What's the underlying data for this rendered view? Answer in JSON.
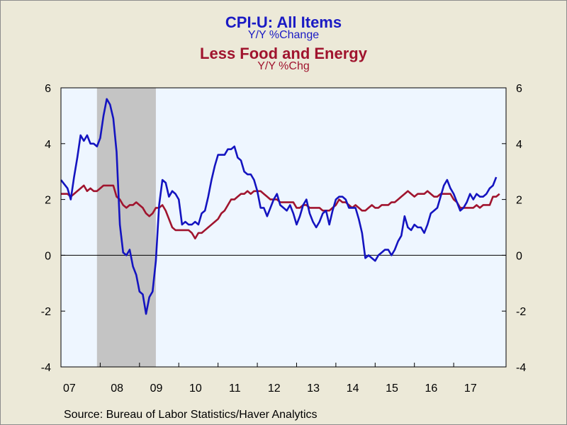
{
  "titles": {
    "line1": "CPI-U: All Items",
    "line2": "Y/Y %Change",
    "line3": "Less Food and Energy",
    "line4": "Y/Y %Chg"
  },
  "source": "Source:  Bureau of Labor Statistics/Haver Analytics",
  "colors": {
    "series_all_items": "#1414c0",
    "series_core": "#a0142e",
    "plot_background": "#eef6ff",
    "recession_shade": "#c4c4c4"
  },
  "chart_data": {
    "type": "line",
    "title": "CPI-U: All Items Y/Y %Change; Less Food and Energy Y/Y %Chg",
    "x_ticks": [
      "07",
      "08",
      "09",
      "10",
      "11",
      "12",
      "13",
      "14",
      "15",
      "16",
      "17"
    ],
    "xlim": [
      "2007-01",
      "2018-05"
    ],
    "ylim": [
      -4,
      6
    ],
    "y_ticks_left": [
      "6",
      "4",
      "2",
      "0",
      "-2",
      "-4"
    ],
    "y_ticks_right": [
      "6",
      "4",
      "2",
      "0",
      "-2",
      "-4"
    ],
    "zero_line": true,
    "recession_shading": [
      [
        "2007-12",
        "2009-06"
      ]
    ],
    "series": [
      {
        "key": "all_items",
        "points": [
          [
            "2007-01",
            2.7
          ],
          [
            "2007-03",
            2.4
          ],
          [
            "2007-04",
            2.0
          ],
          [
            "2007-05",
            2.8
          ],
          [
            "2007-06",
            3.5
          ],
          [
            "2007-07",
            4.3
          ],
          [
            "2007-08",
            4.1
          ],
          [
            "2007-09",
            4.3
          ],
          [
            "2007-10",
            4.0
          ],
          [
            "2007-11",
            4.0
          ],
          [
            "2007-12",
            3.9
          ],
          [
            "2008-01",
            4.2
          ],
          [
            "2008-02",
            5.0
          ],
          [
            "2008-03",
            5.6
          ],
          [
            "2008-04",
            5.4
          ],
          [
            "2008-05",
            4.9
          ],
          [
            "2008-06",
            3.7
          ],
          [
            "2008-07",
            1.1
          ],
          [
            "2008-08",
            0.1
          ],
          [
            "2008-09",
            0.0
          ],
          [
            "2008-10",
            0.2
          ],
          [
            "2008-11",
            -0.4
          ],
          [
            "2008-12",
            -0.7
          ],
          [
            "2009-01",
            -1.3
          ],
          [
            "2009-02",
            -1.4
          ],
          [
            "2009-03",
            -2.1
          ],
          [
            "2009-04",
            -1.5
          ],
          [
            "2009-05",
            -1.3
          ],
          [
            "2009-06",
            -0.2
          ],
          [
            "2009-07",
            1.8
          ],
          [
            "2009-08",
            2.7
          ],
          [
            "2009-09",
            2.6
          ],
          [
            "2009-10",
            2.1
          ],
          [
            "2009-11",
            2.3
          ],
          [
            "2009-12",
            2.2
          ],
          [
            "2010-01",
            2.0
          ],
          [
            "2010-02",
            1.1
          ],
          [
            "2010-03",
            1.2
          ],
          [
            "2010-04",
            1.1
          ],
          [
            "2010-05",
            1.1
          ],
          [
            "2010-06",
            1.2
          ],
          [
            "2010-07",
            1.1
          ],
          [
            "2010-08",
            1.5
          ],
          [
            "2010-09",
            1.6
          ],
          [
            "2010-10",
            2.1
          ],
          [
            "2010-11",
            2.7
          ],
          [
            "2010-12",
            3.2
          ],
          [
            "2011-01",
            3.6
          ],
          [
            "2011-02",
            3.6
          ],
          [
            "2011-03",
            3.6
          ],
          [
            "2011-04",
            3.8
          ],
          [
            "2011-05",
            3.8
          ],
          [
            "2011-06",
            3.9
          ],
          [
            "2011-07",
            3.5
          ],
          [
            "2011-08",
            3.4
          ],
          [
            "2011-09",
            3.0
          ],
          [
            "2011-10",
            2.9
          ],
          [
            "2011-11",
            2.9
          ],
          [
            "2011-12",
            2.7
          ],
          [
            "2012-01",
            2.3
          ],
          [
            "2012-02",
            1.7
          ],
          [
            "2012-03",
            1.7
          ],
          [
            "2012-04",
            1.4
          ],
          [
            "2012-05",
            1.7
          ],
          [
            "2012-06",
            2.0
          ],
          [
            "2012-07",
            2.2
          ],
          [
            "2012-08",
            1.8
          ],
          [
            "2012-09",
            1.7
          ],
          [
            "2012-10",
            1.6
          ],
          [
            "2012-11",
            1.8
          ],
          [
            "2012-12",
            1.5
          ],
          [
            "2013-01",
            1.1
          ],
          [
            "2013-02",
            1.4
          ],
          [
            "2013-03",
            1.8
          ],
          [
            "2013-04",
            2.0
          ],
          [
            "2013-05",
            1.5
          ],
          [
            "2013-06",
            1.2
          ],
          [
            "2013-07",
            1.0
          ],
          [
            "2013-08",
            1.2
          ],
          [
            "2013-09",
            1.5
          ],
          [
            "2013-10",
            1.6
          ],
          [
            "2013-11",
            1.1
          ],
          [
            "2013-12",
            1.6
          ],
          [
            "2014-01",
            2.0
          ],
          [
            "2014-02",
            2.1
          ],
          [
            "2014-03",
            2.1
          ],
          [
            "2014-04",
            2.0
          ],
          [
            "2014-05",
            1.7
          ],
          [
            "2014-06",
            1.7
          ],
          [
            "2014-07",
            1.7
          ],
          [
            "2014-08",
            1.3
          ],
          [
            "2014-09",
            0.8
          ],
          [
            "2014-10",
            -0.1
          ],
          [
            "2014-11",
            0.0
          ],
          [
            "2014-12",
            -0.1
          ],
          [
            "2015-01",
            -0.2
          ],
          [
            "2015-02",
            0.0
          ],
          [
            "2015-03",
            0.1
          ],
          [
            "2015-04",
            0.2
          ],
          [
            "2015-05",
            0.2
          ],
          [
            "2015-06",
            0.0
          ],
          [
            "2015-07",
            0.2
          ],
          [
            "2015-08",
            0.5
          ],
          [
            "2015-09",
            0.7
          ],
          [
            "2015-10",
            1.4
          ],
          [
            "2015-11",
            1.0
          ],
          [
            "2015-12",
            0.9
          ],
          [
            "2016-01",
            1.1
          ],
          [
            "2016-02",
            1.0
          ],
          [
            "2016-03",
            1.0
          ],
          [
            "2016-04",
            0.8
          ],
          [
            "2016-05",
            1.1
          ],
          [
            "2016-06",
            1.5
          ],
          [
            "2016-07",
            1.6
          ],
          [
            "2016-08",
            1.7
          ],
          [
            "2016-09",
            2.1
          ],
          [
            "2016-10",
            2.5
          ],
          [
            "2016-11",
            2.7
          ],
          [
            "2016-12",
            2.4
          ],
          [
            "2017-01",
            2.2
          ],
          [
            "2017-02",
            1.9
          ],
          [
            "2017-03",
            1.6
          ],
          [
            "2017-04",
            1.7
          ],
          [
            "2017-05",
            1.9
          ],
          [
            "2017-06",
            2.2
          ],
          [
            "2017-07",
            2.0
          ],
          [
            "2017-08",
            2.2
          ],
          [
            "2017-09",
            2.1
          ],
          [
            "2017-10",
            2.1
          ],
          [
            "2017-11",
            2.2
          ],
          [
            "2017-12",
            2.4
          ],
          [
            "2018-01",
            2.5
          ],
          [
            "2018-02",
            2.8
          ]
        ]
      },
      {
        "key": "core",
        "points": [
          [
            "2007-01",
            2.2
          ],
          [
            "2007-03",
            2.2
          ],
          [
            "2007-04",
            2.1
          ],
          [
            "2007-05",
            2.2
          ],
          [
            "2007-06",
            2.3
          ],
          [
            "2007-07",
            2.4
          ],
          [
            "2007-08",
            2.5
          ],
          [
            "2007-09",
            2.3
          ],
          [
            "2007-10",
            2.4
          ],
          [
            "2007-11",
            2.3
          ],
          [
            "2007-12",
            2.3
          ],
          [
            "2008-01",
            2.4
          ],
          [
            "2008-02",
            2.5
          ],
          [
            "2008-03",
            2.5
          ],
          [
            "2008-04",
            2.5
          ],
          [
            "2008-05",
            2.5
          ],
          [
            "2008-06",
            2.1
          ],
          [
            "2008-07",
            2.0
          ],
          [
            "2008-08",
            1.8
          ],
          [
            "2008-09",
            1.7
          ],
          [
            "2008-10",
            1.8
          ],
          [
            "2008-11",
            1.8
          ],
          [
            "2008-12",
            1.9
          ],
          [
            "2009-01",
            1.8
          ],
          [
            "2009-02",
            1.7
          ],
          [
            "2009-03",
            1.5
          ],
          [
            "2009-04",
            1.4
          ],
          [
            "2009-05",
            1.5
          ],
          [
            "2009-06",
            1.7
          ],
          [
            "2009-07",
            1.7
          ],
          [
            "2009-08",
            1.8
          ],
          [
            "2009-09",
            1.6
          ],
          [
            "2009-10",
            1.3
          ],
          [
            "2009-11",
            1.0
          ],
          [
            "2009-12",
            0.9
          ],
          [
            "2010-01",
            0.9
          ],
          [
            "2010-02",
            0.9
          ],
          [
            "2010-03",
            0.9
          ],
          [
            "2010-04",
            0.9
          ],
          [
            "2010-05",
            0.8
          ],
          [
            "2010-06",
            0.6
          ],
          [
            "2010-07",
            0.8
          ],
          [
            "2010-08",
            0.8
          ],
          [
            "2010-09",
            0.9
          ],
          [
            "2010-10",
            1.0
          ],
          [
            "2010-11",
            1.1
          ],
          [
            "2010-12",
            1.2
          ],
          [
            "2011-01",
            1.3
          ],
          [
            "2011-02",
            1.5
          ],
          [
            "2011-03",
            1.6
          ],
          [
            "2011-04",
            1.8
          ],
          [
            "2011-05",
            2.0
          ],
          [
            "2011-06",
            2.0
          ],
          [
            "2011-07",
            2.1
          ],
          [
            "2011-08",
            2.2
          ],
          [
            "2011-09",
            2.2
          ],
          [
            "2011-10",
            2.3
          ],
          [
            "2011-11",
            2.2
          ],
          [
            "2011-12",
            2.3
          ],
          [
            "2012-01",
            2.3
          ],
          [
            "2012-02",
            2.3
          ],
          [
            "2012-03",
            2.2
          ],
          [
            "2012-04",
            2.1
          ],
          [
            "2012-05",
            2.0
          ],
          [
            "2012-06",
            2.0
          ],
          [
            "2012-07",
            2.0
          ],
          [
            "2012-08",
            1.9
          ],
          [
            "2012-09",
            1.9
          ],
          [
            "2012-10",
            1.9
          ],
          [
            "2012-11",
            1.9
          ],
          [
            "2012-12",
            1.9
          ],
          [
            "2013-01",
            1.7
          ],
          [
            "2013-02",
            1.7
          ],
          [
            "2013-03",
            1.8
          ],
          [
            "2013-04",
            1.8
          ],
          [
            "2013-05",
            1.7
          ],
          [
            "2013-06",
            1.7
          ],
          [
            "2013-07",
            1.7
          ],
          [
            "2013-08",
            1.7
          ],
          [
            "2013-09",
            1.6
          ],
          [
            "2013-10",
            1.6
          ],
          [
            "2013-11",
            1.6
          ],
          [
            "2013-12",
            1.7
          ],
          [
            "2014-01",
            1.8
          ],
          [
            "2014-02",
            2.0
          ],
          [
            "2014-03",
            1.9
          ],
          [
            "2014-04",
            1.9
          ],
          [
            "2014-05",
            1.8
          ],
          [
            "2014-06",
            1.7
          ],
          [
            "2014-07",
            1.8
          ],
          [
            "2014-08",
            1.7
          ],
          [
            "2014-09",
            1.6
          ],
          [
            "2014-10",
            1.6
          ],
          [
            "2014-11",
            1.7
          ],
          [
            "2014-12",
            1.8
          ],
          [
            "2015-01",
            1.7
          ],
          [
            "2015-02",
            1.7
          ],
          [
            "2015-03",
            1.8
          ],
          [
            "2015-04",
            1.8
          ],
          [
            "2015-05",
            1.8
          ],
          [
            "2015-06",
            1.9
          ],
          [
            "2015-07",
            1.9
          ],
          [
            "2015-08",
            2.0
          ],
          [
            "2015-09",
            2.1
          ],
          [
            "2015-10",
            2.2
          ],
          [
            "2015-11",
            2.3
          ],
          [
            "2015-12",
            2.2
          ],
          [
            "2016-01",
            2.1
          ],
          [
            "2016-02",
            2.2
          ],
          [
            "2016-03",
            2.2
          ],
          [
            "2016-04",
            2.2
          ],
          [
            "2016-05",
            2.3
          ],
          [
            "2016-06",
            2.2
          ],
          [
            "2016-07",
            2.1
          ],
          [
            "2016-08",
            2.1
          ],
          [
            "2016-09",
            2.2
          ],
          [
            "2016-10",
            2.2
          ],
          [
            "2016-11",
            2.2
          ],
          [
            "2016-12",
            2.2
          ],
          [
            "2017-01",
            2.0
          ],
          [
            "2017-02",
            1.9
          ],
          [
            "2017-03",
            1.7
          ],
          [
            "2017-04",
            1.7
          ],
          [
            "2017-05",
            1.7
          ],
          [
            "2017-06",
            1.7
          ],
          [
            "2017-07",
            1.7
          ],
          [
            "2017-08",
            1.8
          ],
          [
            "2017-09",
            1.7
          ],
          [
            "2017-10",
            1.8
          ],
          [
            "2017-11",
            1.8
          ],
          [
            "2017-12",
            1.8
          ],
          [
            "2018-01",
            2.1
          ],
          [
            "2018-02",
            2.1
          ],
          [
            "2018-03",
            2.2
          ]
        ]
      }
    ]
  }
}
